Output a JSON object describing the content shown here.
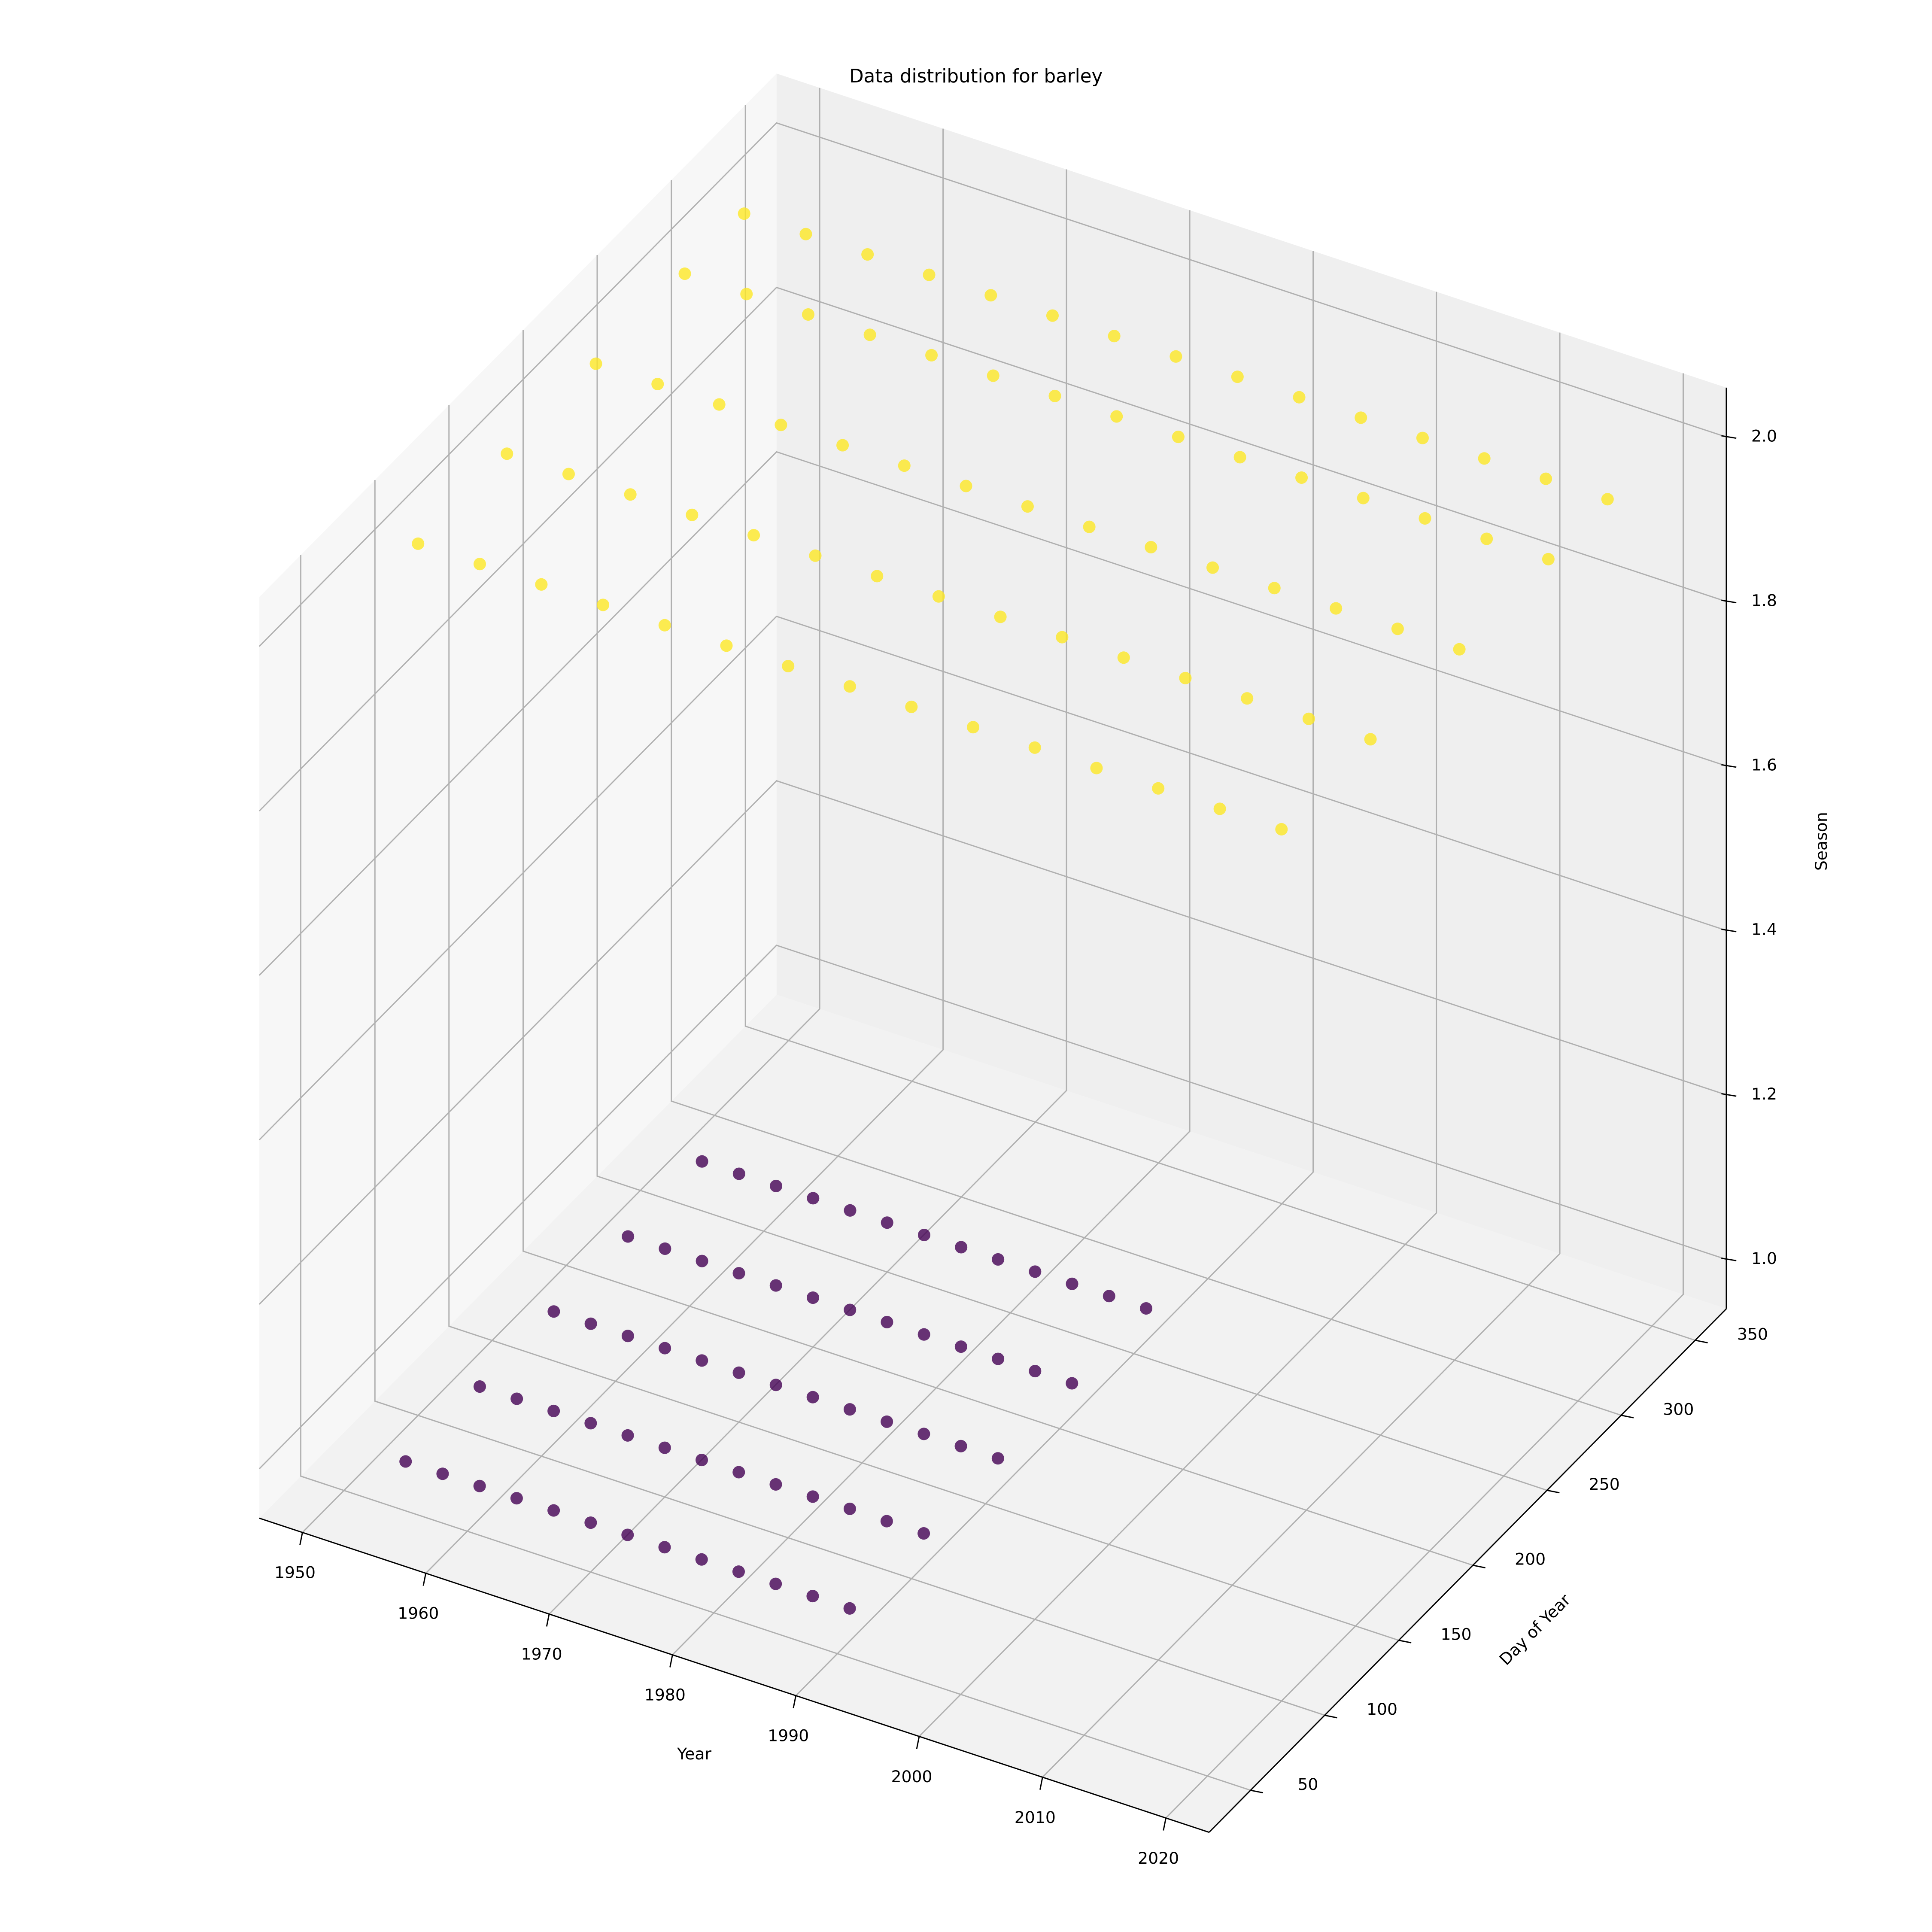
{
  "chart_data": {
    "type": "scatter3d",
    "title": "Data distribution for barley",
    "xlabel": "Year",
    "ylabel": "Day of Year",
    "zlabel": "Season",
    "xlim": [
      1946.5,
      2023.5
    ],
    "ylim": [
      22,
      371
    ],
    "zlim": [
      0.94,
      2.06
    ],
    "xticks": [
      1950,
      1960,
      1970,
      1980,
      1990,
      2000,
      2010,
      2020
    ],
    "yticks": [
      50,
      100,
      150,
      200,
      250,
      300,
      350
    ],
    "zticks": [
      {
        "value": 1,
        "label": "1.0"
      },
      1.2,
      1.4,
      1.6,
      1.8,
      {
        "value": 2,
        "label": "2.0"
      }
    ],
    "grid": true,
    "series": [
      {
        "color": "#440154",
        "x": [
          1955,
          1955,
          1955,
          1955,
          1955,
          1958,
          1958,
          1958,
          1958,
          1958,
          1961,
          1961,
          1961,
          1961,
          1961,
          1964,
          1964,
          1964,
          1964,
          1964,
          1967,
          1967,
          1967,
          1967,
          1967,
          1970,
          1970,
          1970,
          1970,
          1970,
          1973,
          1973,
          1973,
          1973,
          1973,
          1976,
          1976,
          1976,
          1976,
          1976,
          1979,
          1979,
          1979,
          1979,
          1979,
          1982,
          1982,
          1982,
          1982,
          1982,
          1985,
          1985,
          1985,
          1985,
          1985,
          1988,
          1988,
          1988,
          1988,
          1988,
          1991,
          1991,
          1991,
          1991,
          1991
        ],
        "y": [
          50,
          100,
          150,
          200,
          250,
          50,
          100,
          150,
          200,
          250,
          50,
          100,
          150,
          200,
          250,
          50,
          100,
          150,
          200,
          250,
          50,
          100,
          150,
          200,
          250,
          50,
          100,
          150,
          200,
          250,
          50,
          100,
          150,
          200,
          250,
          50,
          100,
          150,
          200,
          250,
          50,
          100,
          150,
          200,
          250,
          50,
          100,
          150,
          200,
          250,
          50,
          100,
          150,
          200,
          250,
          50,
          100,
          150,
          200,
          250,
          50,
          100,
          150,
          200,
          250
        ],
        "z": [
          1,
          1,
          1,
          1,
          1,
          1,
          1,
          1,
          1,
          1,
          1,
          1,
          1,
          1,
          1,
          1,
          1,
          1,
          1,
          1,
          1,
          1,
          1,
          1,
          1,
          1,
          1,
          1,
          1,
          1,
          1,
          1,
          1,
          1,
          1,
          1,
          1,
          1,
          1,
          1,
          1,
          1,
          1,
          1,
          1,
          1,
          1,
          1,
          1,
          1,
          1,
          1,
          1,
          1,
          1,
          1,
          1,
          1,
          1,
          1,
          1,
          1,
          1,
          1,
          1
        ]
      },
      {
        "color": "#fde725",
        "x": [
          1950,
          1950,
          1950,
          1950,
          1950,
          1955,
          1955,
          1955,
          1955,
          1955,
          1960,
          1960,
          1960,
          1960,
          1960,
          1965,
          1965,
          1965,
          1965,
          1965,
          1970,
          1970,
          1970,
          1970,
          1970,
          1975,
          1975,
          1975,
          1975,
          1975,
          1980,
          1980,
          1980,
          1980,
          1980,
          1985,
          1985,
          1985,
          1985,
          1985,
          1990,
          1990,
          1990,
          1990,
          1990,
          1995,
          1995,
          1995,
          1995,
          1995,
          2000,
          2000,
          2000,
          2000,
          2000,
          2005,
          2005,
          2005,
          2005,
          2005,
          2010,
          2010,
          2010,
          2010,
          2010,
          2015,
          2015,
          2015,
          2015,
          2015,
          2020,
          2020,
          2020,
          2020,
          2020
        ],
        "y": [
          100,
          160,
          220,
          280,
          320,
          100,
          160,
          220,
          280,
          320,
          100,
          160,
          220,
          280,
          320,
          100,
          160,
          220,
          280,
          320,
          100,
          160,
          220,
          280,
          320,
          100,
          160,
          220,
          280,
          320,
          100,
          160,
          220,
          280,
          320,
          100,
          160,
          220,
          280,
          320,
          100,
          160,
          220,
          280,
          320,
          100,
          160,
          220,
          280,
          320,
          100,
          160,
          220,
          280,
          320,
          100,
          160,
          220,
          280,
          320,
          100,
          160,
          220,
          280,
          320,
          100,
          160,
          220,
          280,
          320,
          100,
          160,
          220,
          280,
          320
        ],
        "z": [
          2,
          2,
          2,
          2,
          2,
          2,
          2,
          2,
          2,
          2,
          2,
          2,
          2,
          2,
          2,
          2,
          2,
          2,
          2,
          2,
          2,
          2,
          2,
          2,
          2,
          2,
          2,
          2,
          2,
          2,
          2,
          2,
          2,
          2,
          2,
          2,
          2,
          2,
          2,
          2,
          2,
          2,
          2,
          2,
          2,
          2,
          2,
          2,
          2,
          2,
          2,
          2,
          2,
          2,
          2,
          2,
          2,
          2,
          2,
          2,
          2,
          2,
          2,
          2,
          2,
          2,
          2,
          2,
          2,
          2,
          2,
          2,
          2,
          2,
          2
        ]
      }
    ]
  }
}
